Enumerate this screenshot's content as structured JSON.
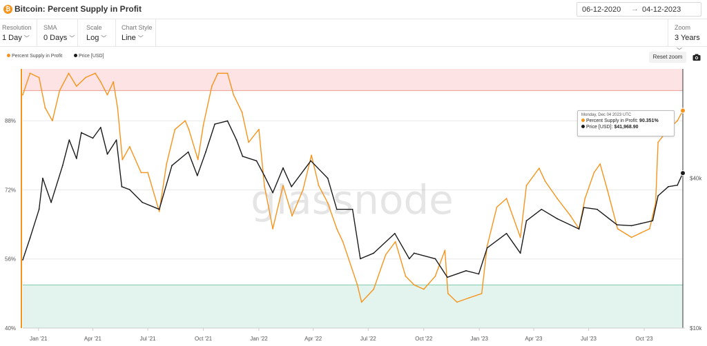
{
  "header": {
    "title": "Bitcoin: Percent Supply in Profit",
    "brand_icon": "bitcoin-icon",
    "date_start": "06-12-2020",
    "date_end": "04-12-2023",
    "date_arrow": "→"
  },
  "controls": {
    "resolution": {
      "label": "Resolution",
      "value": "1 Day"
    },
    "sma": {
      "label": "SMA",
      "value": "0 Days"
    },
    "scale": {
      "label": "Scale",
      "value": "Log"
    },
    "chart_style": {
      "label": "Chart Style",
      "value": "Line"
    },
    "zoom": {
      "label": "Zoom",
      "value": "3 Years"
    }
  },
  "toolbar": {
    "reset_zoom": "Reset zoom",
    "camera_icon": "camera-icon"
  },
  "watermark": "glassnode",
  "colors": {
    "supply": "#f7931a",
    "price": "#1a1a1a",
    "upper_band": "#fde3e3",
    "upper_band_line": "#ef9a9a",
    "lower_band": "#e3f4ee",
    "lower_band_line": "#7cc8a8",
    "accent": "#f7931a"
  },
  "tooltip": {
    "date": "Monday, Dec 04 2023 UTC",
    "supply_label": "Percent Supply in Profit:",
    "supply_value": "90.351%",
    "price_label": "Price [USD]:",
    "price_value": "$41,968.90"
  },
  "chart_data": {
    "type": "line",
    "x_tick_labels": [
      "Jan '21",
      "Apr '21",
      "Jul '21",
      "Oct '21",
      "Jan '22",
      "Apr '22",
      "Jul '22",
      "Oct '22",
      "Jan '23",
      "Apr '23",
      "Jul '23",
      "Oct '23"
    ],
    "x_tick_dates": [
      "2021-01-01",
      "2021-04-01",
      "2021-07-01",
      "2021-10-01",
      "2022-01-01",
      "2022-04-01",
      "2022-07-01",
      "2022-10-01",
      "2023-01-01",
      "2023-04-01",
      "2023-07-01",
      "2023-10-01"
    ],
    "xlim": [
      "2020-12-06",
      "2023-12-04"
    ],
    "left_axis": {
      "ticks": [
        40,
        56,
        72,
        88
      ],
      "tick_labels": [
        "40%",
        "56%",
        "72%",
        "88%"
      ],
      "ylim": [
        40,
        100
      ]
    },
    "right_axis": {
      "scale": "log",
      "ticks": [
        10000,
        40000
      ],
      "tick_labels": [
        "$10k",
        "$40k"
      ],
      "ylim": [
        10000,
        110000
      ]
    },
    "bands": {
      "upper": 95,
      "lower": 50
    },
    "grid": true,
    "legend_position": "top-left",
    "series": [
      {
        "name": "Percent Supply in Profit",
        "axis": "left",
        "points": [
          [
            "2020-12-06",
            94
          ],
          [
            "2020-12-18",
            99
          ],
          [
            "2021-01-02",
            98
          ],
          [
            "2021-01-12",
            91
          ],
          [
            "2021-01-24",
            88
          ],
          [
            "2021-02-05",
            95
          ],
          [
            "2021-02-20",
            99
          ],
          [
            "2021-03-05",
            96
          ],
          [
            "2021-03-20",
            98
          ],
          [
            "2021-04-05",
            99
          ],
          [
            "2021-04-14",
            97
          ],
          [
            "2021-04-25",
            94
          ],
          [
            "2021-05-05",
            97
          ],
          [
            "2021-05-12",
            91
          ],
          [
            "2021-05-20",
            79
          ],
          [
            "2021-06-01",
            82
          ],
          [
            "2021-06-20",
            76
          ],
          [
            "2021-07-01",
            76
          ],
          [
            "2021-07-20",
            67
          ],
          [
            "2021-08-01",
            78
          ],
          [
            "2021-08-15",
            86
          ],
          [
            "2021-09-01",
            88
          ],
          [
            "2021-09-07",
            86
          ],
          [
            "2021-09-22",
            79
          ],
          [
            "2021-10-01",
            87
          ],
          [
            "2021-10-15",
            96
          ],
          [
            "2021-10-25",
            99
          ],
          [
            "2021-11-10",
            99
          ],
          [
            "2021-11-20",
            94
          ],
          [
            "2021-12-04",
            90
          ],
          [
            "2021-12-15",
            83
          ],
          [
            "2022-01-01",
            86
          ],
          [
            "2022-01-10",
            73
          ],
          [
            "2022-01-24",
            63
          ],
          [
            "2022-02-10",
            73
          ],
          [
            "2022-02-25",
            66
          ],
          [
            "2022-03-15",
            72
          ],
          [
            "2022-03-29",
            80
          ],
          [
            "2022-04-10",
            73
          ],
          [
            "2022-04-25",
            69
          ],
          [
            "2022-05-10",
            63
          ],
          [
            "2022-05-20",
            60
          ],
          [
            "2022-06-13",
            50
          ],
          [
            "2022-06-20",
            46
          ],
          [
            "2022-07-10",
            49
          ],
          [
            "2022-07-30",
            57
          ],
          [
            "2022-08-15",
            60
          ],
          [
            "2022-09-01",
            52
          ],
          [
            "2022-09-15",
            50
          ],
          [
            "2022-10-01",
            49
          ],
          [
            "2022-10-20",
            52
          ],
          [
            "2022-11-05",
            58
          ],
          [
            "2022-11-10",
            48
          ],
          [
            "2022-11-25",
            46
          ],
          [
            "2022-12-15",
            47
          ],
          [
            "2023-01-05",
            48
          ],
          [
            "2023-01-14",
            59
          ],
          [
            "2023-01-30",
            68
          ],
          [
            "2023-02-15",
            70
          ],
          [
            "2023-03-10",
            61
          ],
          [
            "2023-03-20",
            73
          ],
          [
            "2023-04-10",
            77
          ],
          [
            "2023-04-20",
            74
          ],
          [
            "2023-05-10",
            70
          ],
          [
            "2023-06-01",
            66
          ],
          [
            "2023-06-15",
            63
          ],
          [
            "2023-06-25",
            70
          ],
          [
            "2023-07-10",
            76
          ],
          [
            "2023-07-20",
            78
          ],
          [
            "2023-08-01",
            72
          ],
          [
            "2023-08-18",
            63
          ],
          [
            "2023-09-10",
            61
          ],
          [
            "2023-09-25",
            62
          ],
          [
            "2023-10-10",
            63
          ],
          [
            "2023-10-20",
            69
          ],
          [
            "2023-10-24",
            83
          ],
          [
            "2023-11-10",
            86
          ],
          [
            "2023-11-25",
            88
          ],
          [
            "2023-12-04",
            90.351
          ]
        ]
      },
      {
        "name": "Price [USD]",
        "axis": "right",
        "points": [
          [
            "2020-12-06",
            18800
          ],
          [
            "2020-12-18",
            23000
          ],
          [
            "2021-01-02",
            30000
          ],
          [
            "2021-01-08",
            40000
          ],
          [
            "2021-01-22",
            32000
          ],
          [
            "2021-02-10",
            45000
          ],
          [
            "2021-02-21",
            57000
          ],
          [
            "2021-03-05",
            48000
          ],
          [
            "2021-03-13",
            61000
          ],
          [
            "2021-04-01",
            58000
          ],
          [
            "2021-04-14",
            64000
          ],
          [
            "2021-04-25",
            50000
          ],
          [
            "2021-05-10",
            57000
          ],
          [
            "2021-05-19",
            37000
          ],
          [
            "2021-06-01",
            36000
          ],
          [
            "2021-06-22",
            32000
          ],
          [
            "2021-07-20",
            30000
          ],
          [
            "2021-08-10",
            45000
          ],
          [
            "2021-09-06",
            51000
          ],
          [
            "2021-09-21",
            41000
          ],
          [
            "2021-10-05",
            51000
          ],
          [
            "2021-10-20",
            66000
          ],
          [
            "2021-11-10",
            68000
          ],
          [
            "2021-11-25",
            57000
          ],
          [
            "2021-12-05",
            49000
          ],
          [
            "2021-12-28",
            47000
          ],
          [
            "2022-01-10",
            41000
          ],
          [
            "2022-01-24",
            35000
          ],
          [
            "2022-02-10",
            44000
          ],
          [
            "2022-02-24",
            37000
          ],
          [
            "2022-03-28",
            47000
          ],
          [
            "2022-04-25",
            40000
          ],
          [
            "2022-05-10",
            30000
          ],
          [
            "2022-06-05",
            30000
          ],
          [
            "2022-06-18",
            19000
          ],
          [
            "2022-07-10",
            20000
          ],
          [
            "2022-08-14",
            24000
          ],
          [
            "2022-09-07",
            19000
          ],
          [
            "2022-09-15",
            20000
          ],
          [
            "2022-10-20",
            19000
          ],
          [
            "2022-11-09",
            16000
          ],
          [
            "2022-12-10",
            17000
          ],
          [
            "2022-12-31",
            16500
          ],
          [
            "2023-01-14",
            21000
          ],
          [
            "2023-02-15",
            24000
          ],
          [
            "2023-03-10",
            20000
          ],
          [
            "2023-03-20",
            27000
          ],
          [
            "2023-04-14",
            30000
          ],
          [
            "2023-05-10",
            27500
          ],
          [
            "2023-06-15",
            25000
          ],
          [
            "2023-06-23",
            30500
          ],
          [
            "2023-07-15",
            30000
          ],
          [
            "2023-08-17",
            26000
          ],
          [
            "2023-09-10",
            25800
          ],
          [
            "2023-09-25",
            26300
          ],
          [
            "2023-10-15",
            27000
          ],
          [
            "2023-10-24",
            34000
          ],
          [
            "2023-11-10",
            37000
          ],
          [
            "2023-11-25",
            37500
          ],
          [
            "2023-12-04",
            41968.9
          ]
        ]
      }
    ]
  }
}
